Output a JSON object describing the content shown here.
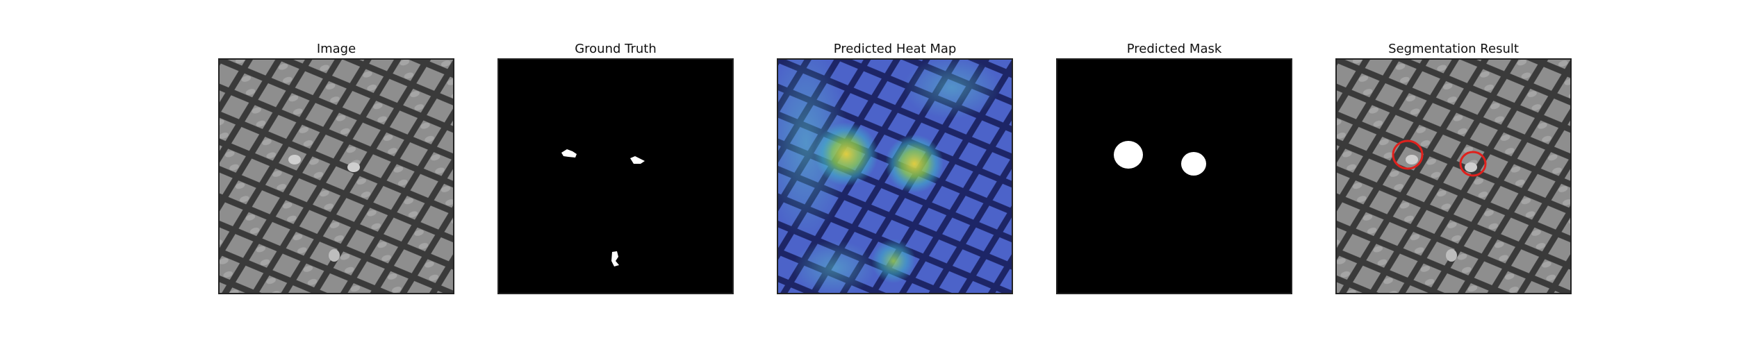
{
  "figure": {
    "panels": [
      {
        "title": "Image",
        "kind": "texture"
      },
      {
        "title": "Ground Truth",
        "kind": "gt-mask"
      },
      {
        "title": "Predicted Heat Map",
        "kind": "heatmap"
      },
      {
        "title": "Predicted Mask",
        "kind": "pred-mask"
      },
      {
        "title": "Segmentation Result",
        "kind": "overlay"
      }
    ],
    "colors": {
      "background": "#ffffff",
      "texture_fill": "#8e8e8e",
      "texture_line": "#3a3a3a",
      "mask_fg": "#ffffff",
      "mask_bg": "#000000",
      "heat_low": "#2d3aa8",
      "heat_mid": "#3fb6c9",
      "heat_high": "#e8d23a",
      "circle": "#e0201c"
    }
  }
}
